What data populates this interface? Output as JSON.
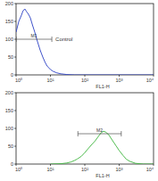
{
  "chart_data": [
    {
      "type": "line",
      "log": "x",
      "x_label": "FL1-H",
      "color": "#2a3fc4",
      "xlim": [
        1,
        10000
      ],
      "xticks": [
        {
          "value": 1,
          "label": "10⁰"
        },
        {
          "value": 10,
          "label": "10¹"
        },
        {
          "value": 100,
          "label": "10²"
        },
        {
          "value": 1000,
          "label": "10³"
        },
        {
          "value": 10000,
          "label": "10⁴"
        }
      ],
      "ylim": [
        0,
        200
      ],
      "yticks": [
        0,
        50,
        100,
        150,
        200
      ],
      "x": [
        1,
        1.2,
        1.4,
        1.6,
        1.8,
        2,
        2.3,
        2.6,
        3,
        3.5,
        4,
        5,
        6,
        7,
        8,
        10,
        12,
        15,
        20,
        30,
        50,
        100,
        1000,
        10000
      ],
      "values": [
        120,
        150,
        165,
        180,
        185,
        178,
        170,
        160,
        140,
        120,
        100,
        70,
        50,
        35,
        25,
        15,
        10,
        6,
        3,
        1,
        0,
        0,
        0,
        0
      ],
      "gates": [
        {
          "label": "M1",
          "range": [
            1,
            11
          ],
          "y": 100
        }
      ],
      "annotation": "Control"
    },
    {
      "type": "line",
      "log": "x",
      "x_label": "FL1-H",
      "color": "#3cb43c",
      "xlim": [
        1,
        10000
      ],
      "xticks": [
        {
          "value": 1,
          "label": "10⁰"
        },
        {
          "value": 10,
          "label": "10¹"
        },
        {
          "value": 100,
          "label": "10²"
        },
        {
          "value": 1000,
          "label": "10³"
        },
        {
          "value": 10000,
          "label": "10⁴"
        }
      ],
      "ylim": [
        0,
        200
      ],
      "yticks": [
        0,
        50,
        100,
        150,
        200
      ],
      "x": [
        10,
        20,
        30,
        40,
        50,
        60,
        80,
        100,
        130,
        160,
        200,
        250,
        300,
        350,
        400,
        500,
        600,
        800,
        1000,
        1300,
        1600,
        2000,
        3000,
        5000,
        10000
      ],
      "values": [
        0,
        1,
        3,
        6,
        10,
        14,
        22,
        32,
        45,
        55,
        65,
        78,
        88,
        92,
        90,
        82,
        70,
        52,
        38,
        24,
        14,
        8,
        2,
        0,
        0
      ],
      "gates": [
        {
          "label": "M2",
          "range": [
            63,
            1150
          ],
          "y": 85
        }
      ]
    }
  ]
}
